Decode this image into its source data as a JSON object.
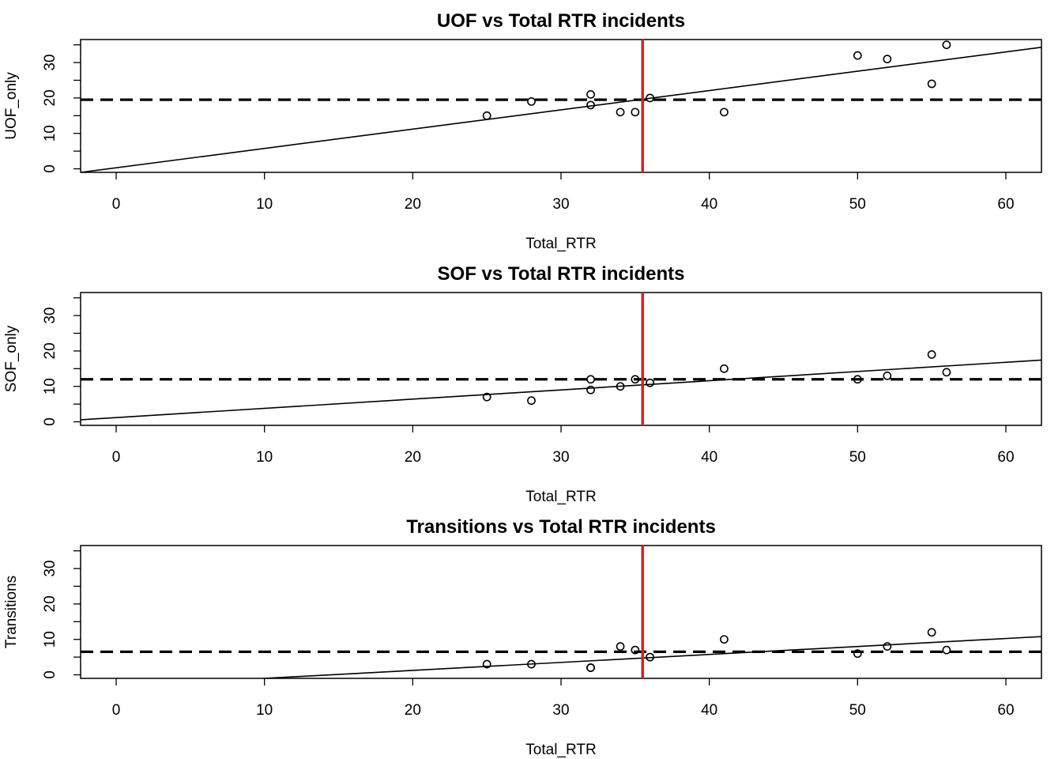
{
  "chart_data": [
    {
      "type": "scatter",
      "title": "UOF vs Total RTR incidents",
      "xlabel": "Total_RTR",
      "ylabel": "UOF_only",
      "xlim": [
        -2.4,
        62.4
      ],
      "ylim": [
        -1,
        36.5
      ],
      "xticks": [
        0,
        10,
        20,
        30,
        40,
        50,
        60
      ],
      "yticks": [
        0,
        10,
        20,
        30
      ],
      "grid": false,
      "points": {
        "x": [
          25,
          28,
          32,
          32,
          34,
          35,
          36,
          41,
          50,
          52,
          55,
          56
        ],
        "y": [
          15,
          19,
          18,
          21,
          16,
          16,
          20,
          16,
          32,
          31,
          24,
          35
        ]
      },
      "fit_line": {
        "intercept": 0.3,
        "slope": 0.545
      },
      "hline": {
        "y": 19.5,
        "style": "dashed",
        "color": "#000000"
      },
      "vline": {
        "x": 35.5,
        "color": "#e41a1c"
      }
    },
    {
      "type": "scatter",
      "title": "SOF vs Total RTR incidents",
      "xlabel": "Total_RTR",
      "ylabel": "SOF_only",
      "xlim": [
        -2.4,
        62.4
      ],
      "ylim": [
        -1,
        36.5
      ],
      "xticks": [
        0,
        10,
        20,
        30,
        40,
        50,
        60
      ],
      "yticks": [
        0,
        10,
        20,
        30
      ],
      "grid": false,
      "points": {
        "x": [
          25,
          28,
          32,
          32,
          34,
          35,
          36,
          41,
          50,
          52,
          55,
          56
        ],
        "y": [
          7,
          6,
          9,
          12,
          10,
          12,
          11,
          15,
          12,
          13,
          19,
          14
        ]
      },
      "fit_line": {
        "intercept": 1.2,
        "slope": 0.26
      },
      "hline": {
        "y": 12,
        "style": "dashed",
        "color": "#000000"
      },
      "vline": {
        "x": 35.5,
        "color": "#e41a1c"
      }
    },
    {
      "type": "scatter",
      "title": "Transitions vs Total RTR incidents",
      "xlabel": "Total_RTR",
      "ylabel": "Transitions",
      "xlim": [
        -2.4,
        62.4
      ],
      "ylim": [
        -1,
        36.5
      ],
      "xticks": [
        0,
        10,
        20,
        30,
        40,
        50,
        60
      ],
      "yticks": [
        0,
        10,
        20,
        30
      ],
      "grid": false,
      "points": {
        "x": [
          25,
          28,
          32,
          32,
          34,
          35,
          36,
          41,
          50,
          52,
          55,
          56
        ],
        "y": [
          3,
          3,
          2,
          2,
          8,
          7,
          5,
          10,
          6,
          8,
          12,
          7
        ]
      },
      "fit_line": {
        "intercept": -3.25,
        "slope": 0.225
      },
      "hline": {
        "y": 6.5,
        "style": "dashed",
        "color": "#000000"
      },
      "vline": {
        "x": 35.5,
        "color": "#e41a1c"
      }
    }
  ]
}
